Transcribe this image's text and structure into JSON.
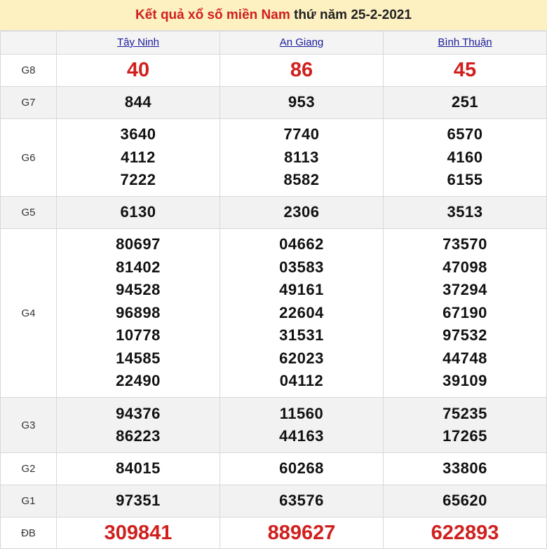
{
  "title": {
    "red_part": "Kết quả xổ số miền Nam",
    "black_part": "thứ năm 25-2-2021"
  },
  "provinces": [
    "Tây Ninh",
    "An Giang",
    "Bình Thuận"
  ],
  "colors": {
    "accent_red": "#d0201e",
    "header_bg": "#fdf1c2",
    "link": "#1a1a9a"
  },
  "prizes": [
    {
      "label": "G8",
      "values": [
        [
          "40"
        ],
        [
          "86"
        ],
        [
          "45"
        ]
      ]
    },
    {
      "label": "G7",
      "values": [
        [
          "844"
        ],
        [
          "953"
        ],
        [
          "251"
        ]
      ]
    },
    {
      "label": "G6",
      "values": [
        [
          "3640",
          "4112",
          "7222"
        ],
        [
          "7740",
          "8113",
          "8582"
        ],
        [
          "6570",
          "4160",
          "6155"
        ]
      ]
    },
    {
      "label": "G5",
      "values": [
        [
          "6130"
        ],
        [
          "2306"
        ],
        [
          "3513"
        ]
      ]
    },
    {
      "label": "G4",
      "values": [
        [
          "80697",
          "81402",
          "94528",
          "96898",
          "10778",
          "14585",
          "22490"
        ],
        [
          "04662",
          "03583",
          "49161",
          "22604",
          "31531",
          "62023",
          "04112"
        ],
        [
          "73570",
          "47098",
          "37294",
          "67190",
          "97532",
          "44748",
          "39109"
        ]
      ]
    },
    {
      "label": "G3",
      "values": [
        [
          "94376",
          "86223"
        ],
        [
          "11560",
          "44163"
        ],
        [
          "75235",
          "17265"
        ]
      ]
    },
    {
      "label": "G2",
      "values": [
        [
          "84015"
        ],
        [
          "60268"
        ],
        [
          "33806"
        ]
      ]
    },
    {
      "label": "G1",
      "values": [
        [
          "97351"
        ],
        [
          "63576"
        ],
        [
          "65620"
        ]
      ]
    },
    {
      "label": "ĐB",
      "values": [
        [
          "309841"
        ],
        [
          "889627"
        ],
        [
          "622893"
        ]
      ]
    }
  ]
}
